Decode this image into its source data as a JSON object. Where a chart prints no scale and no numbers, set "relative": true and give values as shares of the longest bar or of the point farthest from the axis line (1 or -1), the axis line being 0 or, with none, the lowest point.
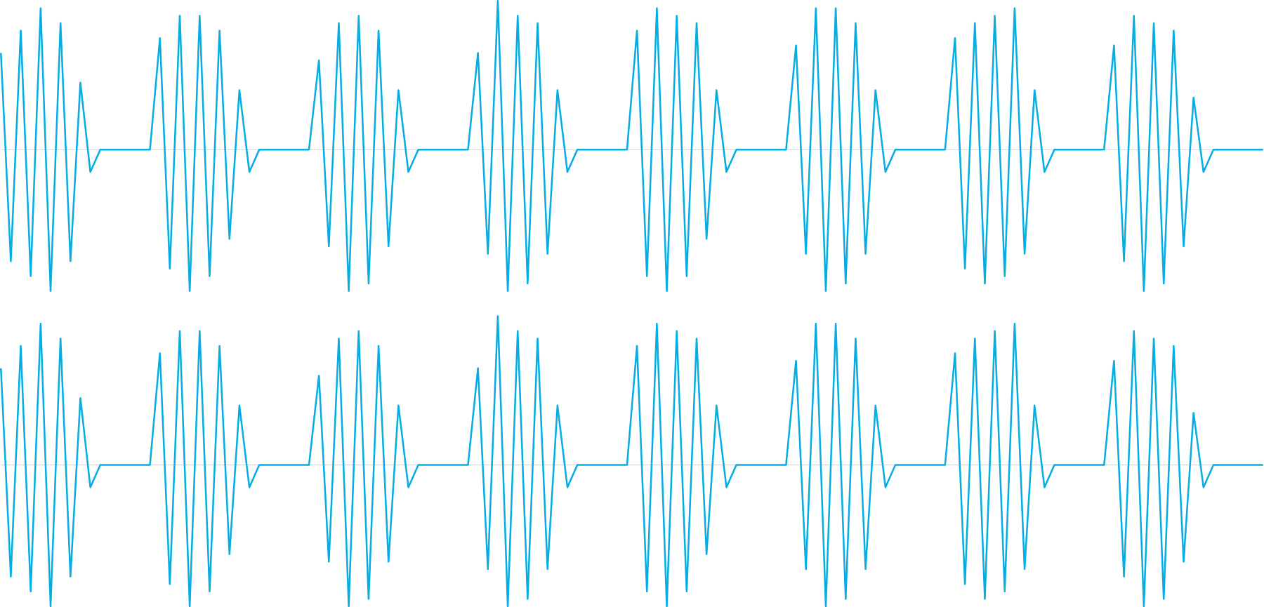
{
  "chart_data": [
    {
      "type": "line",
      "relative": true,
      "color": "#06ade3",
      "categories": [
        null,
        null,
        null,
        null,
        null,
        null,
        null,
        null,
        null,
        null,
        null,
        null,
        null,
        null,
        null,
        null,
        null,
        null,
        null,
        null,
        null,
        null,
        null,
        null,
        null,
        null,
        null,
        null,
        null,
        null,
        null,
        null,
        null,
        null,
        null,
        null,
        null,
        null,
        null,
        null,
        null,
        null,
        null,
        null,
        null,
        null,
        null,
        null,
        null,
        null,
        null,
        null,
        null,
        null,
        null,
        null,
        null,
        null,
        null,
        null,
        null,
        null,
        null,
        null,
        null,
        null,
        null,
        null,
        null,
        null,
        null,
        null,
        null,
        null,
        null,
        null,
        null,
        null,
        null,
        null,
        null,
        null,
        null,
        null,
        null,
        null,
        null,
        null,
        null,
        null,
        null,
        null,
        null,
        null,
        null,
        null,
        null,
        null,
        null,
        null,
        null,
        null,
        null,
        null,
        null,
        null,
        null,
        null,
        null,
        null,
        null,
        null,
        null,
        null,
        null,
        null,
        null,
        null,
        null,
        null,
        null,
        null,
        null,
        null,
        null,
        null,
        null,
        null
      ],
      "values": [
        0.65,
        -0.75,
        0.8,
        -0.85,
        0.95,
        -0.95,
        0.85,
        -0.75,
        0.45,
        -0.15,
        0,
        0,
        0,
        0,
        0,
        0,
        0.75,
        -0.8,
        0.9,
        -0.95,
        0.9,
        -0.85,
        0.8,
        -0.6,
        0.4,
        -0.15,
        0,
        0,
        0,
        0,
        0,
        0,
        0.6,
        -0.65,
        0.85,
        -0.95,
        0.9,
        -0.9,
        0.8,
        -0.65,
        0.4,
        -0.15,
        0,
        0,
        0,
        0,
        0,
        0,
        0.65,
        -0.7,
        1.0,
        -0.95,
        0.9,
        -0.9,
        0.85,
        -0.7,
        0.4,
        -0.15,
        0,
        0,
        0,
        0,
        0,
        0,
        0.8,
        -0.85,
        0.95,
        -0.95,
        0.9,
        -0.85,
        0.85,
        -0.6,
        0.4,
        -0.15,
        0,
        0,
        0,
        0,
        0,
        0,
        0.7,
        -0.7,
        0.95,
        -0.95,
        0.95,
        -0.9,
        0.85,
        -0.7,
        0.4,
        -0.15,
        0,
        0,
        0,
        0,
        0,
        0,
        0.75,
        -0.8,
        0.85,
        -0.9,
        0.9,
        -0.85,
        0.95,
        -0.7,
        0.4,
        -0.15,
        0,
        0,
        0,
        0,
        0,
        0,
        0.7,
        -0.75,
        0.9,
        -0.95,
        0.85,
        -0.9,
        0.8,
        -0.65,
        0.35,
        -0.15,
        0,
        0,
        0,
        0,
        0,
        0
      ]
    },
    {
      "type": "line",
      "relative": true,
      "color": "#06ade3",
      "categories": [
        null,
        null,
        null,
        null,
        null,
        null,
        null,
        null,
        null,
        null,
        null,
        null,
        null,
        null,
        null,
        null,
        null,
        null,
        null,
        null,
        null,
        null,
        null,
        null,
        null,
        null,
        null,
        null,
        null,
        null,
        null,
        null,
        null,
        null,
        null,
        null,
        null,
        null,
        null,
        null,
        null,
        null,
        null,
        null,
        null,
        null,
        null,
        null,
        null,
        null,
        null,
        null,
        null,
        null,
        null,
        null,
        null,
        null,
        null,
        null,
        null,
        null,
        null,
        null,
        null,
        null,
        null,
        null,
        null,
        null,
        null,
        null,
        null,
        null,
        null,
        null,
        null,
        null,
        null,
        null,
        null,
        null,
        null,
        null,
        null,
        null,
        null,
        null,
        null,
        null,
        null,
        null,
        null,
        null,
        null,
        null,
        null,
        null,
        null,
        null,
        null,
        null,
        null,
        null,
        null,
        null,
        null,
        null,
        null,
        null,
        null,
        null,
        null,
        null,
        null,
        null,
        null,
        null,
        null,
        null,
        null,
        null,
        null,
        null,
        null,
        null,
        null,
        null
      ],
      "values": [
        0.65,
        -0.75,
        0.8,
        -0.85,
        0.95,
        -0.95,
        0.85,
        -0.75,
        0.45,
        -0.15,
        0,
        0,
        0,
        0,
        0,
        0,
        0.75,
        -0.8,
        0.9,
        -0.95,
        0.9,
        -0.85,
        0.8,
        -0.6,
        0.4,
        -0.15,
        0,
        0,
        0,
        0,
        0,
        0,
        0.6,
        -0.65,
        0.85,
        -0.95,
        0.9,
        -0.9,
        0.8,
        -0.65,
        0.4,
        -0.15,
        0,
        0,
        0,
        0,
        0,
        0,
        0.65,
        -0.7,
        1.0,
        -0.95,
        0.9,
        -0.9,
        0.85,
        -0.7,
        0.4,
        -0.15,
        0,
        0,
        0,
        0,
        0,
        0,
        0.8,
        -0.85,
        0.95,
        -0.95,
        0.9,
        -0.85,
        0.85,
        -0.6,
        0.4,
        -0.15,
        0,
        0,
        0,
        0,
        0,
        0,
        0.7,
        -0.7,
        0.95,
        -0.95,
        0.95,
        -0.9,
        0.85,
        -0.7,
        0.4,
        -0.15,
        0,
        0,
        0,
        0,
        0,
        0,
        0.75,
        -0.8,
        0.85,
        -0.9,
        0.9,
        -0.85,
        0.95,
        -0.7,
        0.4,
        -0.15,
        0,
        0,
        0,
        0,
        0,
        0,
        0.7,
        -0.75,
        0.9,
        -0.95,
        0.85,
        -0.9,
        0.8,
        -0.65,
        0.35,
        -0.15,
        0,
        0,
        0,
        0,
        0,
        0
      ]
    }
  ]
}
